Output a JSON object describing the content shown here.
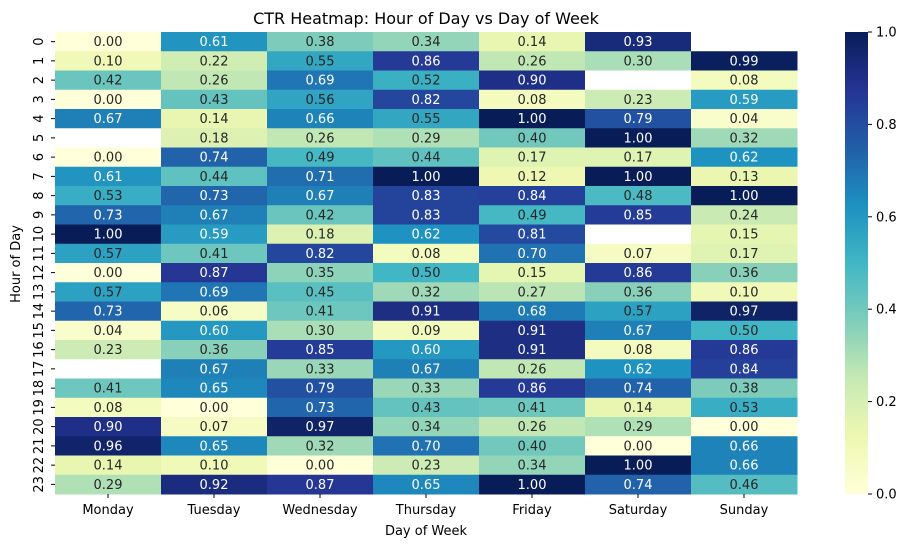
{
  "chart_data": {
    "type": "heatmap",
    "title": "CTR Heatmap: Hour of Day vs Day of Week",
    "xlabel": "Day of Week",
    "ylabel": "Hour of Day",
    "x_categories": [
      "Monday",
      "Tuesday",
      "Wednesday",
      "Thursday",
      "Friday",
      "Saturday",
      "Sunday"
    ],
    "y_categories": [
      "0",
      "1",
      "2",
      "3",
      "4",
      "5",
      "6",
      "7",
      "8",
      "9",
      "10",
      "11",
      "12",
      "13",
      "14",
      "15",
      "16",
      "17",
      "18",
      "19",
      "20",
      "21",
      "22",
      "23"
    ],
    "values": [
      [
        0.0,
        0.61,
        0.38,
        0.34,
        0.14,
        0.93,
        null
      ],
      [
        0.1,
        0.22,
        0.55,
        0.86,
        0.26,
        0.3,
        0.99
      ],
      [
        0.42,
        0.26,
        0.69,
        0.52,
        0.9,
        null,
        0.08
      ],
      [
        0.0,
        0.43,
        0.56,
        0.82,
        0.08,
        0.23,
        0.59
      ],
      [
        0.67,
        0.14,
        0.66,
        0.55,
        1.0,
        0.79,
        0.04
      ],
      [
        null,
        0.18,
        0.26,
        0.29,
        0.4,
        1.0,
        0.32
      ],
      [
        0.0,
        0.74,
        0.49,
        0.44,
        0.17,
        0.17,
        0.62
      ],
      [
        0.61,
        0.44,
        0.71,
        1.0,
        0.12,
        1.0,
        0.13
      ],
      [
        0.53,
        0.73,
        0.67,
        0.83,
        0.84,
        0.48,
        1.0
      ],
      [
        0.73,
        0.67,
        0.42,
        0.83,
        0.49,
        0.85,
        0.24
      ],
      [
        1.0,
        0.59,
        0.18,
        0.62,
        0.81,
        null,
        0.15
      ],
      [
        0.57,
        0.41,
        0.82,
        0.08,
        0.7,
        0.07,
        0.17
      ],
      [
        0.0,
        0.87,
        0.35,
        0.5,
        0.15,
        0.86,
        0.36
      ],
      [
        0.57,
        0.69,
        0.45,
        0.32,
        0.27,
        0.36,
        0.1
      ],
      [
        0.73,
        0.06,
        0.41,
        0.91,
        0.68,
        0.57,
        0.97
      ],
      [
        0.04,
        0.6,
        0.3,
        0.09,
        0.91,
        0.67,
        0.5
      ],
      [
        0.23,
        0.36,
        0.85,
        0.6,
        0.91,
        0.08,
        0.86
      ],
      [
        null,
        0.67,
        0.33,
        0.67,
        0.26,
        0.62,
        0.84
      ],
      [
        0.41,
        0.65,
        0.79,
        0.33,
        0.86,
        0.74,
        0.38
      ],
      [
        0.08,
        0.0,
        0.73,
        0.43,
        0.41,
        0.14,
        0.53
      ],
      [
        0.9,
        0.07,
        0.97,
        0.34,
        0.26,
        0.29,
        0.0
      ],
      [
        0.96,
        0.65,
        0.32,
        0.7,
        0.4,
        0.0,
        0.66
      ],
      [
        0.14,
        0.1,
        0.0,
        0.23,
        0.34,
        1.0,
        0.66
      ],
      [
        0.29,
        0.92,
        0.87,
        0.65,
        1.0,
        0.74,
        0.46
      ]
    ],
    "value_format": "0.00",
    "colormap": "YlGnBu",
    "color_range": [
      0.0,
      1.0
    ],
    "colorbar_ticks": [
      "0.0",
      "0.2",
      "0.4",
      "0.6",
      "0.8",
      "1.0"
    ],
    "colorbar_tick_values": [
      0.0,
      0.2,
      0.4,
      0.6,
      0.8,
      1.0
    ],
    "missing_color": "#ffffff",
    "colormap_stops": [
      "#ffffd9",
      "#edf8b1",
      "#c7e9b4",
      "#7fcdbb",
      "#41b6c4",
      "#1d91c0",
      "#225ea8",
      "#253494",
      "#081d58"
    ],
    "grid": false
  }
}
